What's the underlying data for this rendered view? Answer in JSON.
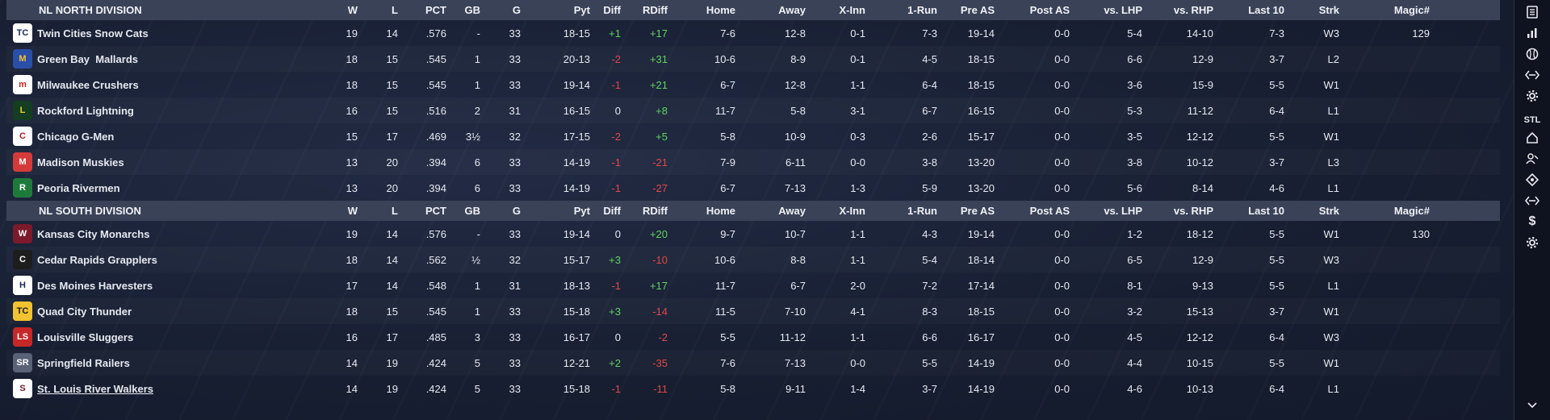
{
  "columns": [
    "W",
    "L",
    "PCT",
    "GB",
    "G",
    "Pyt",
    "Diff",
    "RDiff",
    "Home",
    "Away",
    "X-Inn",
    "1-Run",
    "Pre AS",
    "Post AS",
    "vs. LHP",
    "vs. RHP",
    "Last 10",
    "Strk",
    "Magic#"
  ],
  "divisions": [
    {
      "name": "NL NORTH DIVISION",
      "teams": [
        {
          "name": "Twin Cities Snow Cats",
          "W": "19",
          "L": "14",
          "PCT": ".576",
          "GB": "-",
          "G": "33",
          "Pyt": "18-15",
          "Diff": "+1",
          "RDiff": "+17",
          "Home": "7-6",
          "Away": "12-8",
          "XInn": "0-1",
          "OneRun": "7-3",
          "PreAS": "19-14",
          "PostAS": "0-0",
          "vsLHP": "5-4",
          "vsRHP": "14-10",
          "Last10": "7-3",
          "Strk": "W3",
          "Magic": "129",
          "logo": "TC",
          "logo_bg": "#ffffff",
          "logo_fg": "#1b2a55"
        },
        {
          "name": "Green Bay  Mallards",
          "W": "18",
          "L": "15",
          "PCT": ".545",
          "GB": "1",
          "G": "33",
          "Pyt": "20-13",
          "Diff": "-2",
          "RDiff": "+31",
          "Home": "10-6",
          "Away": "8-9",
          "XInn": "0-1",
          "OneRun": "4-5",
          "PreAS": "18-15",
          "PostAS": "0-0",
          "vsLHP": "6-6",
          "vsRHP": "12-9",
          "Last10": "3-7",
          "Strk": "L2",
          "Magic": "",
          "logo": "M",
          "logo_bg": "#2a4fa8",
          "logo_fg": "#f2c230"
        },
        {
          "name": "Milwaukee Crushers",
          "W": "18",
          "L": "15",
          "PCT": ".545",
          "GB": "1",
          "G": "33",
          "Pyt": "19-14",
          "Diff": "-1",
          "RDiff": "+21",
          "Home": "6-7",
          "Away": "12-8",
          "XInn": "1-1",
          "OneRun": "6-4",
          "PreAS": "18-15",
          "PostAS": "0-0",
          "vsLHP": "3-6",
          "vsRHP": "15-9",
          "Last10": "5-5",
          "Strk": "W1",
          "Magic": "",
          "logo": "m",
          "logo_bg": "#ffffff",
          "logo_fg": "#c62828"
        },
        {
          "name": "Rockford Lightning",
          "W": "16",
          "L": "15",
          "PCT": ".516",
          "GB": "2",
          "G": "31",
          "Pyt": "16-15",
          "Diff": "0",
          "RDiff": "+8",
          "Home": "11-7",
          "Away": "5-8",
          "XInn": "3-1",
          "OneRun": "6-7",
          "PreAS": "16-15",
          "PostAS": "0-0",
          "vsLHP": "5-3",
          "vsRHP": "11-12",
          "Last10": "6-4",
          "Strk": "L1",
          "Magic": "",
          "logo": "L",
          "logo_bg": "#143d22",
          "logo_fg": "#e8d22a"
        },
        {
          "name": "Chicago G-Men",
          "W": "15",
          "L": "17",
          "PCT": ".469",
          "GB": "3½",
          "G": "32",
          "Pyt": "17-15",
          "Diff": "-2",
          "RDiff": "+5",
          "Home": "5-8",
          "Away": "10-9",
          "XInn": "0-3",
          "OneRun": "2-6",
          "PreAS": "15-17",
          "PostAS": "0-0",
          "vsLHP": "3-5",
          "vsRHP": "12-12",
          "Last10": "5-5",
          "Strk": "W1",
          "Magic": "",
          "logo": "C",
          "logo_bg": "#ffffff",
          "logo_fg": "#b71c1c"
        },
        {
          "name": "Madison Muskies",
          "W": "13",
          "L": "20",
          "PCT": ".394",
          "GB": "6",
          "G": "33",
          "Pyt": "14-19",
          "Diff": "-1",
          "RDiff": "-21",
          "Home": "7-9",
          "Away": "6-11",
          "XInn": "0-0",
          "OneRun": "3-8",
          "PreAS": "13-20",
          "PostAS": "0-0",
          "vsLHP": "3-8",
          "vsRHP": "10-12",
          "Last10": "3-7",
          "Strk": "L3",
          "Magic": "",
          "logo": "M",
          "logo_bg": "#d43a3a",
          "logo_fg": "#ffffff"
        },
        {
          "name": "Peoria Rivermen",
          "W": "13",
          "L": "20",
          "PCT": ".394",
          "GB": "6",
          "G": "33",
          "Pyt": "14-19",
          "Diff": "-1",
          "RDiff": "-27",
          "Home": "6-7",
          "Away": "7-13",
          "XInn": "1-3",
          "OneRun": "5-9",
          "PreAS": "13-20",
          "PostAS": "0-0",
          "vsLHP": "5-6",
          "vsRHP": "8-14",
          "Last10": "4-6",
          "Strk": "L1",
          "Magic": "",
          "logo": "R",
          "logo_bg": "#1e7a3a",
          "logo_fg": "#ffffff"
        }
      ]
    },
    {
      "name": "NL SOUTH DIVISION",
      "teams": [
        {
          "name": "Kansas City Monarchs",
          "W": "19",
          "L": "14",
          "PCT": ".576",
          "GB": "-",
          "G": "33",
          "Pyt": "19-14",
          "Diff": "0",
          "RDiff": "+20",
          "Home": "9-7",
          "Away": "10-7",
          "XInn": "1-1",
          "OneRun": "4-3",
          "PreAS": "19-14",
          "PostAS": "0-0",
          "vsLHP": "1-2",
          "vsRHP": "18-12",
          "Last10": "5-5",
          "Strk": "W1",
          "Magic": "130",
          "logo": "W",
          "logo_bg": "#7a1a2a",
          "logo_fg": "#ffffff"
        },
        {
          "name": "Cedar Rapids Grapplers",
          "W": "18",
          "L": "14",
          "PCT": ".562",
          "GB": "½",
          "G": "32",
          "Pyt": "15-17",
          "Diff": "+3",
          "RDiff": "-10",
          "Home": "10-6",
          "Away": "8-8",
          "XInn": "1-1",
          "OneRun": "5-4",
          "PreAS": "18-14",
          "PostAS": "0-0",
          "vsLHP": "6-5",
          "vsRHP": "12-9",
          "Last10": "5-5",
          "Strk": "W3",
          "Magic": "",
          "logo": "C",
          "logo_bg": "#1d1d1d",
          "logo_fg": "#ffffff"
        },
        {
          "name": "Des Moines Harvesters",
          "W": "17",
          "L": "14",
          "PCT": ".548",
          "GB": "1",
          "G": "31",
          "Pyt": "18-13",
          "Diff": "-1",
          "RDiff": "+17",
          "Home": "11-7",
          "Away": "6-7",
          "XInn": "2-0",
          "OneRun": "7-2",
          "PreAS": "17-14",
          "PostAS": "0-0",
          "vsLHP": "8-1",
          "vsRHP": "9-13",
          "Last10": "5-5",
          "Strk": "L1",
          "Magic": "",
          "logo": "H",
          "logo_bg": "#ffffff",
          "logo_fg": "#1b2a55"
        },
        {
          "name": "Quad City Thunder",
          "W": "18",
          "L": "15",
          "PCT": ".545",
          "GB": "1",
          "G": "33",
          "Pyt": "15-18",
          "Diff": "+3",
          "RDiff": "-14",
          "Home": "11-5",
          "Away": "7-10",
          "XInn": "4-1",
          "OneRun": "8-3",
          "PreAS": "18-15",
          "PostAS": "0-0",
          "vsLHP": "3-2",
          "vsRHP": "15-13",
          "Last10": "3-7",
          "Strk": "W1",
          "Magic": "",
          "logo": "TC",
          "logo_bg": "#f2c230",
          "logo_fg": "#1d1d1d"
        },
        {
          "name": "Louisville Sluggers",
          "W": "16",
          "L": "17",
          "PCT": ".485",
          "GB": "3",
          "G": "33",
          "Pyt": "16-17",
          "Diff": "0",
          "RDiff": "-2",
          "Home": "5-5",
          "Away": "11-12",
          "XInn": "1-1",
          "OneRun": "6-6",
          "PreAS": "16-17",
          "PostAS": "0-0",
          "vsLHP": "4-5",
          "vsRHP": "12-12",
          "Last10": "6-4",
          "Strk": "W3",
          "Magic": "",
          "logo": "LS",
          "logo_bg": "#c62828",
          "logo_fg": "#ffffff"
        },
        {
          "name": "Springfield Railers",
          "W": "14",
          "L": "19",
          "PCT": ".424",
          "GB": "5",
          "G": "33",
          "Pyt": "12-21",
          "Diff": "+2",
          "RDiff": "-35",
          "Home": "7-6",
          "Away": "7-13",
          "XInn": "0-0",
          "OneRun": "5-5",
          "PreAS": "14-19",
          "PostAS": "0-0",
          "vsLHP": "4-4",
          "vsRHP": "10-15",
          "Last10": "5-5",
          "Strk": "W1",
          "Magic": "",
          "logo": "SR",
          "logo_bg": "#5a6278",
          "logo_fg": "#ffffff"
        },
        {
          "name": "St. Louis River Walkers",
          "W": "14",
          "L": "19",
          "PCT": ".424",
          "GB": "5",
          "G": "33",
          "Pyt": "15-18",
          "Diff": "-1",
          "RDiff": "-11",
          "Home": "5-8",
          "Away": "9-11",
          "XInn": "1-4",
          "OneRun": "3-7",
          "PreAS": "14-19",
          "PostAS": "0-0",
          "vsLHP": "4-6",
          "vsRHP": "10-13",
          "Last10": "6-4",
          "Strk": "L1",
          "Magic": "",
          "logo": "S",
          "logo_bg": "#ffffff",
          "logo_fg": "#7a1a2a",
          "link": true
        }
      ]
    }
  ],
  "sidebar": {
    "team_abbr": "STL",
    "icons": [
      "list-icon",
      "bar-chart-icon",
      "baseball-icon",
      "transactions-icon",
      "settings-icon",
      "home-icon",
      "scout-icon",
      "diamond-icon",
      "trade-icon",
      "finances-icon",
      "gear-icon",
      "chevron-down-icon"
    ]
  },
  "colors": {
    "positive": "#5fd35f",
    "negative": "#e04848",
    "header_bg": "#3a4258"
  }
}
